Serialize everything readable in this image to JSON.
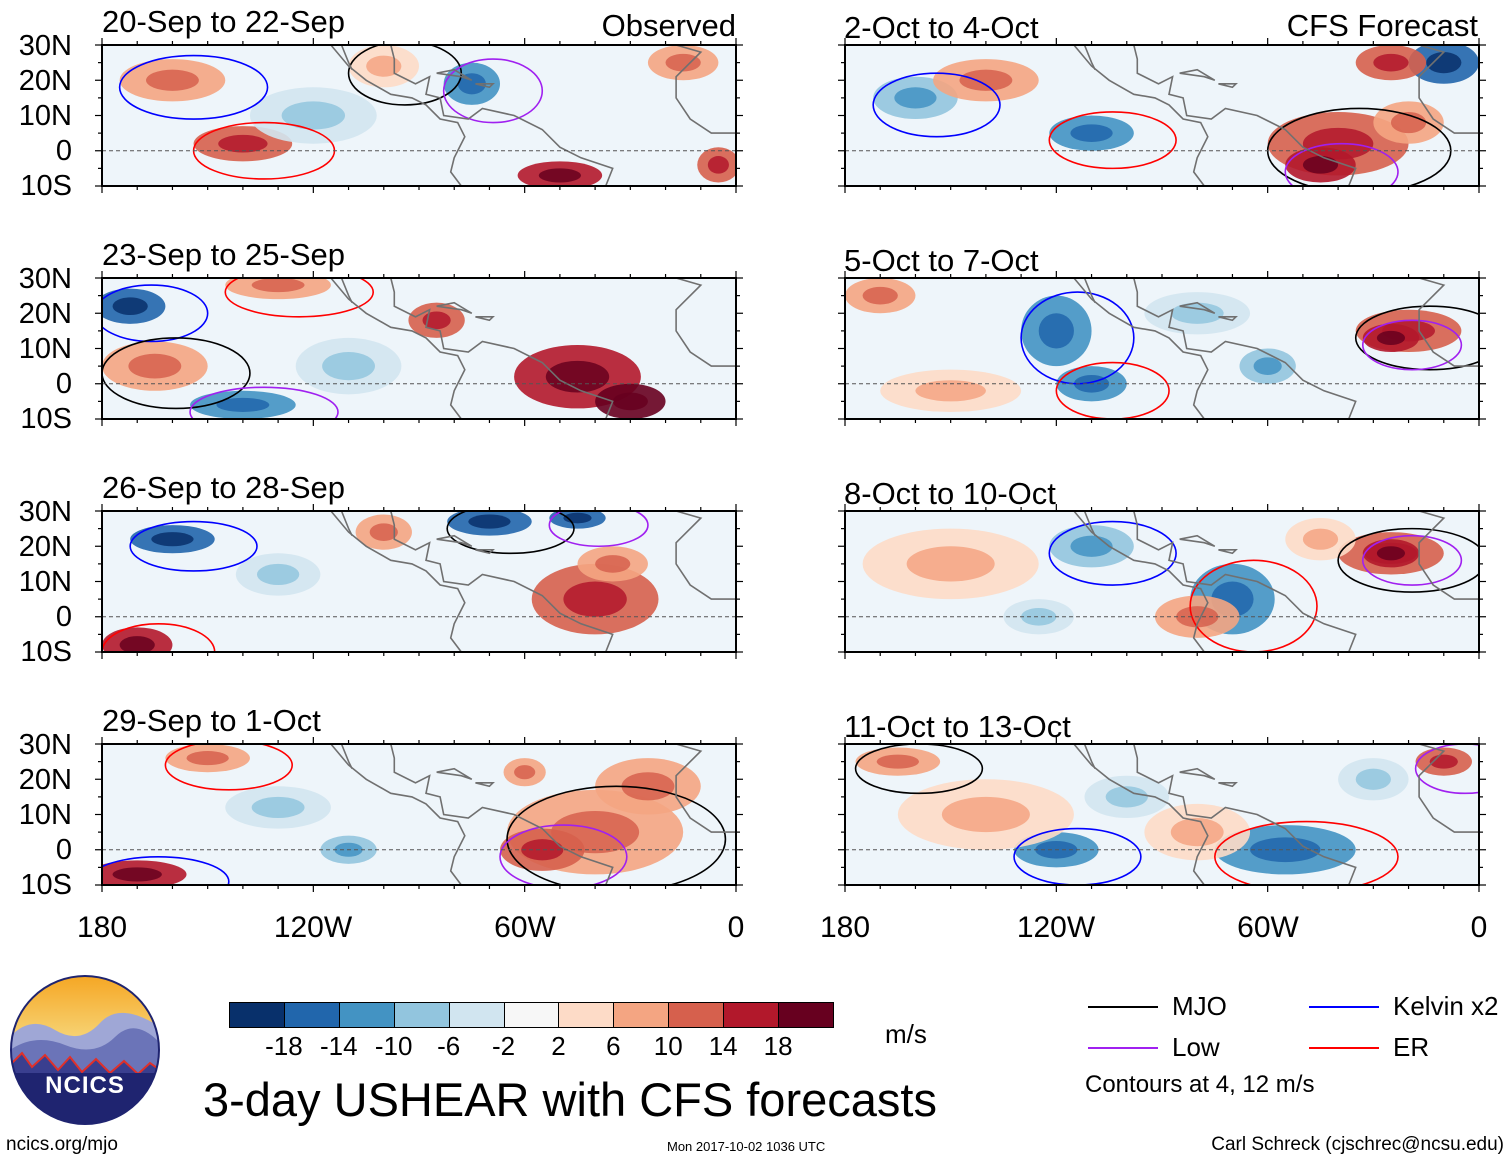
{
  "title": "3-day USHEAR with CFS forecasts",
  "columns": {
    "left": "Observed",
    "right": "CFS Forecast"
  },
  "footer": {
    "left": "ncics.org/mjo",
    "middle": "Mon 2017-10-02 1036 UTC",
    "right": "Carl Schreck (cjschrec@ncsu.edu)"
  },
  "logo": {
    "text": "NCICS"
  },
  "chart_data": {
    "type": "heatmap",
    "variable": "USHEAR",
    "units": "m/s",
    "lat_ticks": [
      "30N",
      "20N",
      "10N",
      "0",
      "10S"
    ],
    "lat_range": [
      -10,
      30
    ],
    "lon_ticks": [
      "180",
      "120W",
      "60W",
      "0"
    ],
    "lon_range": [
      -180,
      0
    ],
    "panels": [
      {
        "title": "20-Sep to 22-Sep",
        "column": "Observed"
      },
      {
        "title": "23-Sep to 25-Sep",
        "column": "Observed"
      },
      {
        "title": "26-Sep to 28-Sep",
        "column": "Observed"
      },
      {
        "title": "29-Sep to 1-Oct",
        "column": "Observed"
      },
      {
        "title": "2-Oct to 4-Oct",
        "column": "CFS Forecast"
      },
      {
        "title": "5-Oct to 7-Oct",
        "column": "CFS Forecast"
      },
      {
        "title": "8-Oct to 10-Oct",
        "column": "CFS Forecast"
      },
      {
        "title": "11-Oct to 13-Oct",
        "column": "CFS Forecast"
      }
    ],
    "colorbar": {
      "levels": [
        "-18",
        "-14",
        "-10",
        "-6",
        "-2",
        "2",
        "6",
        "10",
        "14",
        "18"
      ],
      "colors": [
        "#08306b",
        "#2166ac",
        "#4393c3",
        "#92c5de",
        "#d1e5f0",
        "#f7f7f7",
        "#fddbc7",
        "#f4a582",
        "#d6604d",
        "#b2182b",
        "#67001f"
      ]
    },
    "legend": [
      {
        "label": "MJO",
        "color": "#000000"
      },
      {
        "label": "Kelvin x2",
        "color": "#0000ff"
      },
      {
        "label": "Low",
        "color": "#a020f0"
      },
      {
        "label": "ER",
        "color": "#ff0000"
      }
    ],
    "contour_note": "Contours at 4, 12 m/s"
  }
}
